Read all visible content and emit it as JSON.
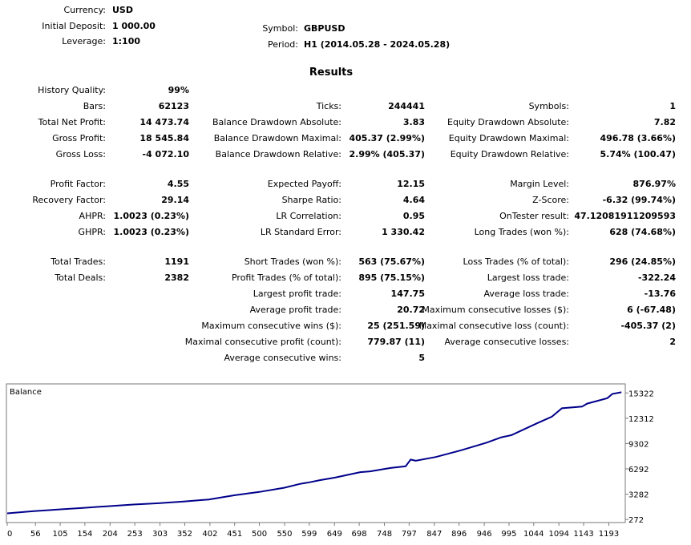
{
  "header": {
    "currency_label": "Currency:",
    "currency": "USD",
    "deposit_label": "Initial Deposit:",
    "deposit": "1 000.00",
    "leverage_label": "Leverage:",
    "leverage": "1:100",
    "symbol_label": "Symbol:",
    "symbol": "GBPUSD",
    "period_label": "Period:",
    "period": "H1 (2014.05.28 - 2024.05.28)"
  },
  "results_title": "Results",
  "stats": [
    {
      "label": "History Quality:",
      "value": "99%"
    },
    {
      "label": "Bars:",
      "value": "62123"
    },
    {
      "label": "Total Net Profit:",
      "value": "14 473.74"
    },
    {
      "label": "Gross Profit:",
      "value": "18 545.84"
    },
    {
      "label": "Gross Loss:",
      "value": "-4 072.10"
    },
    {
      "label": "Profit Factor:",
      "value": "4.55"
    },
    {
      "label": "Recovery Factor:",
      "value": "29.14"
    },
    {
      "label": "AHPR:",
      "value": "1.0023 (0.23%)"
    },
    {
      "label": "GHPR:",
      "value": "1.0023 (0.23%)"
    },
    {
      "label": "Total Trades:",
      "value": "1191"
    },
    {
      "label": "Total Deals:",
      "value": "2382"
    },
    {
      "label": "Ticks:",
      "value": "244441"
    },
    {
      "label": "Balance Drawdown Absolute:",
      "value": "3.83"
    },
    {
      "label": "Balance Drawdown Maximal:",
      "value": "405.37 (2.99%)"
    },
    {
      "label": "Balance Drawdown Relative:",
      "value": "2.99% (405.37)"
    },
    {
      "label": "Expected Payoff:",
      "value": "12.15"
    },
    {
      "label": "Sharpe Ratio:",
      "value": "4.64"
    },
    {
      "label": "LR Correlation:",
      "value": "0.95"
    },
    {
      "label": "LR Standard Error:",
      "value": "1 330.42"
    },
    {
      "label": "Short Trades (won %):",
      "value": "563 (75.67%)"
    },
    {
      "label": "Profit Trades (% of total):",
      "value": "895 (75.15%)"
    },
    {
      "label": "Largest profit trade:",
      "value": "147.75"
    },
    {
      "label": "Average profit trade:",
      "value": "20.72"
    },
    {
      "label": "Maximum consecutive wins ($):",
      "value": "25 (251.59)"
    },
    {
      "label": "Maximal consecutive profit (count):",
      "value": "779.87 (11)"
    },
    {
      "label": "Average consecutive wins:",
      "value": "5"
    },
    {
      "label": "Symbols:",
      "value": "1"
    },
    {
      "label": "Equity Drawdown Absolute:",
      "value": "7.82"
    },
    {
      "label": "Equity Drawdown Maximal:",
      "value": "496.78 (3.66%)"
    },
    {
      "label": "Equity Drawdown Relative:",
      "value": "5.74% (100.47)"
    },
    {
      "label": "Margin Level:",
      "value": "876.97%"
    },
    {
      "label": "Z-Score:",
      "value": "-6.32 (99.74%)"
    },
    {
      "label": "OnTester result:",
      "value": "47.12081911209593"
    },
    {
      "label": "Long Trades (won %):",
      "value": "628 (74.68%)"
    },
    {
      "label": "Loss Trades (% of total):",
      "value": "296 (24.85%)"
    },
    {
      "label": "Largest loss trade:",
      "value": "-322.24"
    },
    {
      "label": "Average loss trade:",
      "value": "-13.76"
    },
    {
      "label": "Maximum consecutive losses ($):",
      "value": "6 (-67.48)"
    },
    {
      "label": "Maximal consecutive loss (count):",
      "value": "-405.37 (2)"
    },
    {
      "label": "Average consecutive losses:",
      "value": "2"
    }
  ],
  "chart_data": {
    "type": "line",
    "title": "Balance",
    "xlabel": "",
    "ylabel": "",
    "x_ticks": [
      0,
      56,
      105,
      154,
      204,
      253,
      303,
      352,
      402,
      451,
      500,
      550,
      599,
      649,
      698,
      748,
      797,
      847,
      896,
      946,
      995,
      1044,
      1094,
      1143,
      1193
    ],
    "y_ticks": [
      272,
      3282,
      6292,
      9302,
      12312,
      15322
    ],
    "xlim": [
      0,
      1224
    ],
    "ylim": [
      0,
      16300
    ],
    "line_color": "#00008b",
    "grid": false,
    "series": [
      {
        "x": [
          0,
          50,
          100,
          150,
          200,
          250,
          300,
          350,
          400,
          420,
          450,
          500,
          550,
          580,
          600,
          620,
          650,
          700,
          720,
          760,
          790,
          800,
          810,
          850,
          900,
          950,
          980,
          1000,
          1050,
          1080,
          1100,
          1140,
          1150,
          1190,
          1200,
          1218
        ],
        "y": [
          1000,
          1250,
          1450,
          1650,
          1850,
          2050,
          2200,
          2400,
          2650,
          2850,
          3150,
          3550,
          4050,
          4500,
          4700,
          4950,
          5250,
          5900,
          6000,
          6400,
          6600,
          7400,
          7250,
          7700,
          8500,
          9400,
          10050,
          10300,
          11700,
          12500,
          13500,
          13700,
          14050,
          14700,
          15200,
          15400
        ]
      }
    ]
  }
}
